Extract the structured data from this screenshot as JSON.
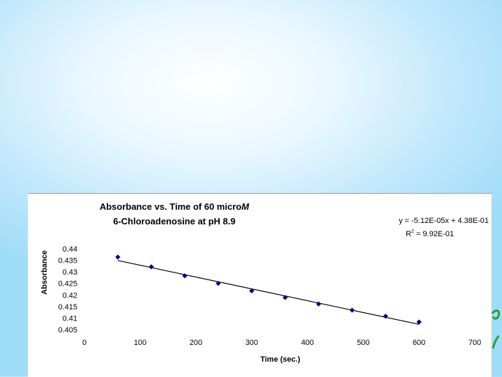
{
  "chart_data": {
    "type": "scatter",
    "title_line1_prefix": "Absorbance vs. Time of 60 micro",
    "title_line1_italic": "M",
    "title_line2": "6-Chloroadenosine at pH 8.9",
    "xlabel": "Time (sec.)",
    "ylabel": "Absorbance",
    "xlim": [
      0,
      700
    ],
    "ylim": [
      0.405,
      0.44
    ],
    "x_ticks": [
      "0",
      "100",
      "200",
      "300",
      "400",
      "500",
      "600",
      "700"
    ],
    "y_ticks": [
      "0.44",
      "0.435",
      "0.43",
      "0.425",
      "0.42",
      "0.415",
      "0.41",
      "0.405"
    ],
    "x_tick_values": [
      0,
      100,
      200,
      300,
      400,
      500,
      600,
      700
    ],
    "y_tick_values": [
      0.44,
      0.435,
      0.43,
      0.425,
      0.42,
      0.415,
      0.41,
      0.405
    ],
    "series": [
      {
        "points": [
          {
            "x": 60,
            "y": 0.4364
          },
          {
            "x": 120,
            "y": 0.4322
          },
          {
            "x": 180,
            "y": 0.4283
          },
          {
            "x": 240,
            "y": 0.425
          },
          {
            "x": 300,
            "y": 0.4218
          },
          {
            "x": 360,
            "y": 0.4189
          },
          {
            "x": 420,
            "y": 0.4161
          },
          {
            "x": 480,
            "y": 0.4134
          },
          {
            "x": 540,
            "y": 0.4108
          },
          {
            "x": 600,
            "y": 0.4083
          }
        ],
        "color": "#000080"
      }
    ],
    "trendline": {
      "slope": -5.12e-05,
      "intercept": 0.438,
      "x_range": [
        60,
        600
      ],
      "equation_text": "y = -5.12E-05x + 4.38E-01",
      "r2_prefix": "R",
      "r2_sup": "2",
      "r2_suffix": " = 9.92E-01"
    },
    "grid": false,
    "legend": "none"
  },
  "colors": {
    "marker": "#000080",
    "trendline": "#000000",
    "decor": "#2e9e2e"
  }
}
